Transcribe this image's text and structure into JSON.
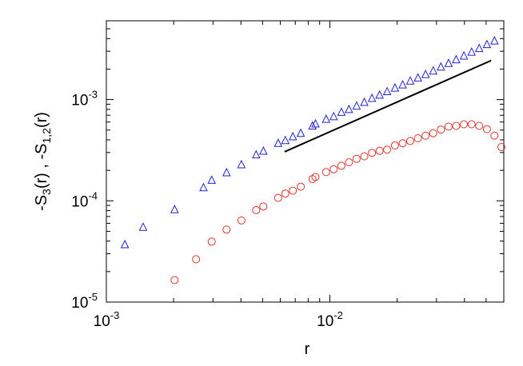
{
  "chart_data": {
    "type": "scatter",
    "xscale": "log",
    "yscale": "log",
    "xlim": [
      0.001,
      0.06
    ],
    "ylim": [
      1e-05,
      0.006
    ],
    "xlabel": "r",
    "ylabel": {
      "parts": [
        {
          "text": "-S",
          "role": "base"
        },
        {
          "text": "3",
          "role": "sub"
        },
        {
          "text": "(r) , -S",
          "role": "base"
        },
        {
          "text": "1,2",
          "role": "sub"
        },
        {
          "text": "(r)",
          "role": "base"
        }
      ]
    },
    "x_ticks": [
      {
        "value": 0.001,
        "base": "10",
        "exp": "-3"
      },
      {
        "value": 0.01,
        "base": "10",
        "exp": "-2"
      }
    ],
    "y_ticks": [
      {
        "value": 1e-05,
        "base": "10",
        "exp": "-5"
      },
      {
        "value": 0.0001,
        "base": "10",
        "exp": "-4"
      },
      {
        "value": 0.001,
        "base": "10",
        "exp": "-3"
      }
    ],
    "grid": false,
    "legend": "none",
    "series": [
      {
        "marker": "triangle",
        "color": "#2222cc",
        "points": [
          [
            0.00121,
            3.7e-05
          ],
          [
            0.00146,
            5.5e-05
          ],
          [
            0.00202,
            8.2e-05
          ],
          [
            0.00272,
            0.000135
          ],
          [
            0.00296,
            0.00016
          ],
          [
            0.00345,
            0.00019
          ],
          [
            0.00402,
            0.000228
          ],
          [
            0.00468,
            0.000285
          ],
          [
            0.00504,
            0.00031
          ],
          [
            0.00587,
            0.00037
          ],
          [
            0.00632,
            0.000395
          ],
          [
            0.00683,
            0.00043
          ],
          [
            0.00741,
            0.000465
          ],
          [
            0.00836,
            0.00055
          ],
          [
            0.00862,
            0.000575
          ],
          [
            0.00962,
            0.00064
          ],
          [
            0.0104,
            0.00068
          ],
          [
            0.01126,
            0.00075
          ],
          [
            0.01217,
            0.0008
          ],
          [
            0.01317,
            0.000865
          ],
          [
            0.01426,
            0.00094
          ],
          [
            0.01543,
            0.00103
          ],
          [
            0.01669,
            0.00111
          ],
          [
            0.01804,
            0.0012
          ],
          [
            0.01955,
            0.0013
          ],
          [
            0.02117,
            0.0014
          ],
          [
            0.02289,
            0.00153
          ],
          [
            0.02478,
            0.00164
          ],
          [
            0.0268,
            0.00177
          ],
          [
            0.029,
            0.00192
          ],
          [
            0.03139,
            0.0021
          ],
          [
            0.03396,
            0.00228
          ],
          [
            0.03673,
            0.00248
          ],
          [
            0.03977,
            0.0027
          ],
          [
            0.04306,
            0.00295
          ],
          [
            0.04656,
            0.0032
          ],
          [
            0.05042,
            0.0035
          ],
          [
            0.05451,
            0.0038
          ]
        ]
      },
      {
        "marker": "circle",
        "color": "#dd3333",
        "points": [
          [
            0.00202,
            1.65e-05
          ],
          [
            0.00252,
            2.65e-05
          ],
          [
            0.00296,
            3.95e-05
          ],
          [
            0.00345,
            5.2e-05
          ],
          [
            0.00402,
            6.4e-05
          ],
          [
            0.00468,
            8.1e-05
          ],
          [
            0.00504,
            8.8e-05
          ],
          [
            0.00587,
            0.000107
          ],
          [
            0.00632,
            0.000118
          ],
          [
            0.00683,
            0.000126
          ],
          [
            0.00741,
            0.000138
          ],
          [
            0.00836,
            0.000164
          ],
          [
            0.00862,
            0.000172
          ],
          [
            0.00962,
            0.000192
          ],
          [
            0.0104,
            0.000205
          ],
          [
            0.01126,
            0.000222
          ],
          [
            0.01217,
            0.00024
          ],
          [
            0.01317,
            0.00026
          ],
          [
            0.01426,
            0.000275
          ],
          [
            0.01543,
            0.000298
          ],
          [
            0.01669,
            0.000312
          ],
          [
            0.01804,
            0.00032
          ],
          [
            0.01955,
            0.000352
          ],
          [
            0.02117,
            0.00037
          ],
          [
            0.02289,
            0.00039
          ],
          [
            0.02478,
            0.000415
          ],
          [
            0.0268,
            0.00044
          ],
          [
            0.029,
            0.000465
          ],
          [
            0.03139,
            0.000505
          ],
          [
            0.03396,
            0.00054
          ],
          [
            0.03673,
            0.00055
          ],
          [
            0.03977,
            0.00057
          ],
          [
            0.04306,
            0.00057
          ],
          [
            0.04656,
            0.00055
          ],
          [
            0.05042,
            0.00051
          ],
          [
            0.05451,
            0.00044
          ],
          [
            0.05853,
            0.00034
          ]
        ]
      }
    ],
    "reference_line": {
      "color": "#000000",
      "from": [
        0.00627,
        0.000305
      ],
      "to": [
        0.05264,
        0.00243
      ]
    }
  }
}
